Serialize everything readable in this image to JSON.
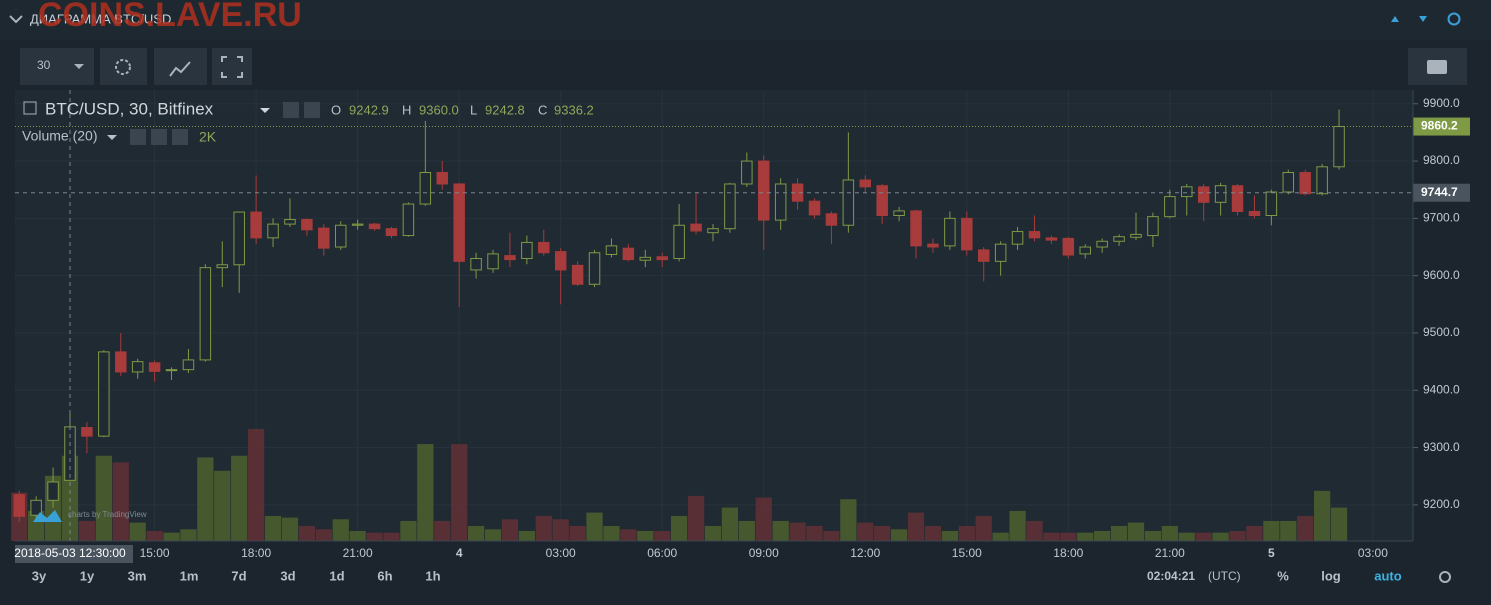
{
  "header": {
    "title": "ДИАГРАММА BTC/USD",
    "watermark": "COINS.LAVE.RU"
  },
  "toolbar": {
    "interval": "30"
  },
  "chart_data": {
    "type": "candlestick",
    "title": "BTC/USD, 30, Bitfinex",
    "ohlc_names": [
      "O",
      "H",
      "L",
      "C"
    ],
    "ohlc_value_labels": [
      "9242.9",
      "9360.0",
      "9242.8",
      "9336.2"
    ],
    "colors": {
      "up": "#7f9a45",
      "down": "#a83b3b",
      "volume_up": "#4a5e2e",
      "volume_down": "#5e3035"
    },
    "candles": {
      "open": [
        9218,
        9182,
        9208,
        9242.9,
        9335,
        9320,
        9467,
        9432,
        9448,
        9435,
        9436,
        9453,
        9614,
        9619,
        9711,
        9666,
        9690,
        9698,
        9683,
        9650,
        9688,
        9690,
        9682,
        9670,
        9725,
        9780,
        9760,
        9610,
        9612,
        9635,
        9630,
        9658,
        9642,
        9618,
        9585,
        9637,
        9648,
        9627,
        9633,
        9630,
        9690,
        9675,
        9682,
        9760,
        9800,
        9697,
        9760,
        9730,
        9708,
        9688,
        9767,
        9757,
        9705,
        9713,
        9655,
        9652,
        9700,
        9645,
        9625,
        9655,
        9677,
        9666,
        9665,
        9638,
        9650,
        9660,
        9667,
        9670,
        9703,
        9738,
        9755,
        9728,
        9757,
        9712,
        9705,
        9746,
        9780,
        9743,
        9790
      ],
      "high": [
        9225,
        9215,
        9265,
        9360,
        9345,
        9470,
        9500,
        9455,
        9452,
        9440,
        9472,
        9620,
        9660,
        9712,
        9775,
        9700,
        9735,
        9700,
        9690,
        9695,
        9698,
        9692,
        9685,
        9728,
        9870,
        9800,
        9762,
        9640,
        9645,
        9675,
        9670,
        9680,
        9648,
        9625,
        9645,
        9665,
        9655,
        9645,
        9640,
        9725,
        9745,
        9690,
        9762,
        9815,
        9810,
        9770,
        9770,
        9735,
        9712,
        9850,
        9775,
        9760,
        9720,
        9715,
        9665,
        9712,
        9712,
        9650,
        9660,
        9685,
        9705,
        9670,
        9668,
        9655,
        9665,
        9672,
        9710,
        9710,
        9750,
        9760,
        9760,
        9762,
        9760,
        9740,
        9750,
        9785,
        9785,
        9795,
        9890
      ],
      "low": [
        9170,
        9170,
        9195,
        9242.8,
        9290,
        9318,
        9425,
        9420,
        9415,
        9418,
        9430,
        9450,
        9580,
        9570,
        9655,
        9650,
        9685,
        9670,
        9635,
        9645,
        9680,
        9678,
        9665,
        9668,
        9722,
        9750,
        9545,
        9595,
        9605,
        9615,
        9620,
        9635,
        9550,
        9582,
        9580,
        9632,
        9625,
        9615,
        9615,
        9625,
        9672,
        9660,
        9675,
        9755,
        9645,
        9680,
        9715,
        9700,
        9655,
        9675,
        9745,
        9690,
        9695,
        9630,
        9640,
        9645,
        9635,
        9590,
        9600,
        9645,
        9660,
        9655,
        9630,
        9630,
        9640,
        9652,
        9662,
        9650,
        9700,
        9705,
        9695,
        9705,
        9705,
        9700,
        9688,
        9742,
        9740,
        9740,
        9785
      ],
      "close": [
        9180,
        9208,
        9240,
        9336.2,
        9320,
        9467,
        9432,
        9450,
        9433,
        9436,
        9453,
        9614,
        9619,
        9711,
        9666,
        9690,
        9698,
        9680,
        9648,
        9688,
        9690,
        9682,
        9670,
        9725,
        9780,
        9760,
        9625,
        9630,
        9638,
        9628,
        9658,
        9640,
        9610,
        9585,
        9640,
        9652,
        9628,
        9632,
        9628,
        9688,
        9678,
        9682,
        9760,
        9800,
        9697,
        9760,
        9730,
        9706,
        9688,
        9767,
        9755,
        9705,
        9713,
        9652,
        9650,
        9700,
        9645,
        9625,
        9655,
        9677,
        9666,
        9662,
        9636,
        9650,
        9660,
        9668,
        9672,
        9703,
        9738,
        9755,
        9728,
        9757,
        9712,
        9705,
        9746,
        9780,
        9743,
        9790,
        9860.2
      ]
    },
    "volume": {
      "name": "Volume (20)",
      "value_label": "2K",
      "values": [
        2900,
        1800,
        3900,
        5100,
        1200,
        5100,
        4700,
        1100,
        600,
        500,
        700,
        5000,
        4200,
        5100,
        6700,
        1500,
        1400,
        900,
        700,
        1300,
        600,
        500,
        500,
        1200,
        5800,
        1200,
        5800,
        900,
        700,
        1300,
        600,
        1500,
        1300,
        900,
        1700,
        900,
        700,
        600,
        600,
        1500,
        2700,
        900,
        2000,
        1200,
        2600,
        1200,
        1100,
        900,
        600,
        2500,
        1100,
        900,
        700,
        1700,
        900,
        600,
        900,
        1500,
        500,
        1800,
        1200,
        500,
        500,
        500,
        600,
        900,
        1100,
        600,
        900,
        500,
        500,
        500,
        600,
        900,
        1200,
        1200,
        1500,
        3000,
        2000
      ]
    },
    "ylim": [
      9137,
      9924
    ],
    "yticks": [
      {
        "value": 9200,
        "label": "9200.0"
      },
      {
        "value": 9300,
        "label": "9300.0"
      },
      {
        "value": 9400,
        "label": "9400.0"
      },
      {
        "value": 9500,
        "label": "9500.0"
      },
      {
        "value": 9600,
        "label": "9600.0"
      },
      {
        "value": 9700,
        "label": "9700.0"
      },
      {
        "value": 9800,
        "label": "9800.0"
      },
      {
        "value": 9900,
        "label": "9900.0"
      }
    ],
    "xlim": [
      -0.25,
      82.37
    ],
    "xticks": [
      {
        "value": 8,
        "label": "15:00"
      },
      {
        "value": 14,
        "label": "18:00"
      },
      {
        "value": 20,
        "label": "21:00"
      },
      {
        "value": 26,
        "label": "4"
      },
      {
        "value": 32,
        "label": "03:00"
      },
      {
        "value": 38,
        "label": "06:00"
      },
      {
        "value": 44,
        "label": "09:00"
      },
      {
        "value": 50,
        "label": "12:00"
      },
      {
        "value": 56,
        "label": "15:00"
      },
      {
        "value": 62,
        "label": "18:00"
      },
      {
        "value": 68,
        "label": "21:00"
      },
      {
        "value": 74,
        "label": "5"
      },
      {
        "value": 80,
        "label": "03:00"
      }
    ],
    "grid": true,
    "crosshair": {
      "index": 3,
      "price": 9744.7,
      "time_label": "2018-05-03 12:30:00"
    }
  },
  "branding": "charts by TradingView",
  "footer": {
    "ranges": [
      "3y",
      "1y",
      "3m",
      "1m",
      "7d",
      "3d",
      "1d",
      "6h",
      "1h"
    ],
    "clock": "02:04:21",
    "timezone": "(UTC)",
    "options": [
      "%",
      "log",
      "auto"
    ]
  }
}
